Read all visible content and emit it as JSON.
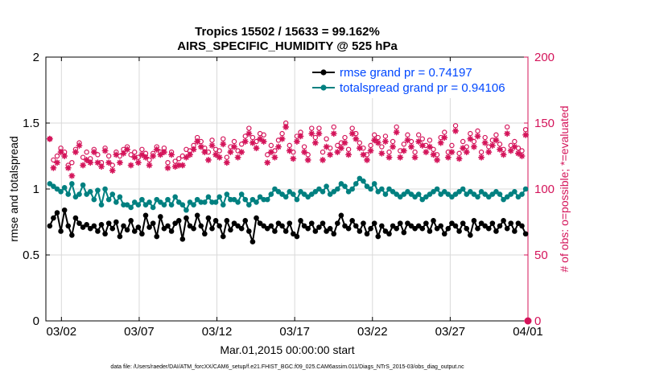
{
  "chart_data": {
    "type": "line",
    "title": "Tropics 15502 / 15633 = 99.162%",
    "subtitle": "AIRS_SPECIFIC_HUMIDITY @ 525 hPa",
    "xlabel": "Mar.01,2015 00:00:00 start",
    "ylabel_left": "rmse and totalspread",
    "ylabel_right": "# of obs: o=possible; *=evaluated",
    "x_range_days": [
      0,
      31
    ],
    "ylim_left": [
      0,
      2
    ],
    "ylim_right": [
      0,
      200
    ],
    "x_ticks": [
      {
        "day": 1,
        "label": "03/02"
      },
      {
        "day": 6,
        "label": "03/07"
      },
      {
        "day": 11,
        "label": "03/12"
      },
      {
        "day": 16,
        "label": "03/17"
      },
      {
        "day": 21,
        "label": "03/22"
      },
      {
        "day": 26,
        "label": "03/27"
      },
      {
        "day": 31,
        "label": "04/01"
      }
    ],
    "y_ticks_left": [
      {
        "value": 0,
        "label": "0"
      },
      {
        "value": 0.5,
        "label": "0.5"
      },
      {
        "value": 1,
        "label": "1"
      },
      {
        "value": 1.5,
        "label": "1.5"
      },
      {
        "value": 2,
        "label": "2"
      }
    ],
    "y_ticks_right": [
      {
        "value": 0,
        "label": "0"
      },
      {
        "value": 50,
        "label": "50"
      },
      {
        "value": 100,
        "label": "100"
      },
      {
        "value": 150,
        "label": "150"
      },
      {
        "value": 200,
        "label": "200"
      }
    ],
    "grid": true,
    "legend_position": "top-right",
    "series": [
      {
        "name": "rmse",
        "legend": "rmse grand pr = 0.74197",
        "color": "#000000",
        "axis": "left",
        "values": [
          0.72,
          0.78,
          0.82,
          0.68,
          0.84,
          0.72,
          0.65,
          0.78,
          0.74,
          0.71,
          0.73,
          0.7,
          0.72,
          0.68,
          0.73,
          0.66,
          0.74,
          0.7,
          0.75,
          0.64,
          0.72,
          0.69,
          0.76,
          0.68,
          0.71,
          0.66,
          0.8,
          0.71,
          0.74,
          0.64,
          0.79,
          0.7,
          0.72,
          0.68,
          0.74,
          0.76,
          0.62,
          0.78,
          0.72,
          0.7,
          0.8,
          0.72,
          0.66,
          0.78,
          0.7,
          0.76,
          0.72,
          0.64,
          0.76,
          0.69,
          0.74,
          0.72,
          0.7,
          0.76,
          0.68,
          0.6,
          0.78,
          0.74,
          0.72,
          0.7,
          0.72,
          0.68,
          0.74,
          0.72,
          0.68,
          0.74,
          0.66,
          0.64,
          0.76,
          0.72,
          0.7,
          0.74,
          0.68,
          0.71,
          0.74,
          0.68,
          0.7,
          0.66,
          0.74,
          0.8,
          0.72,
          0.7,
          0.76,
          0.72,
          0.68,
          0.74,
          0.66,
          0.7,
          0.74,
          0.64,
          0.72,
          0.68,
          0.66,
          0.72,
          0.7,
          0.74,
          0.67,
          0.74,
          0.72,
          0.7,
          0.72,
          0.7,
          0.74,
          0.68,
          0.76,
          0.7,
          0.72,
          0.66,
          0.7,
          0.74,
          0.72,
          0.68,
          0.74,
          0.7,
          0.65,
          0.76,
          0.7,
          0.74,
          0.72,
          0.7,
          0.74,
          0.68,
          0.72,
          0.76,
          0.7,
          0.74,
          0.68,
          0.74,
          0.72,
          0.66
        ]
      },
      {
        "name": "totalspread",
        "legend": "totalspread grand pr = 0.94106",
        "color": "#008080",
        "axis": "right_companion",
        "values": [
          1.04,
          1.02,
          1.0,
          0.98,
          1.01,
          0.96,
          1.04,
          0.94,
          0.96,
          1.03,
          0.96,
          0.98,
          0.92,
          0.99,
          0.88,
          1.0,
          0.92,
          0.96,
          0.9,
          0.94,
          0.88,
          0.88,
          0.86,
          0.9,
          0.88,
          0.92,
          0.88,
          0.9,
          0.86,
          0.92,
          0.9,
          0.88,
          0.92,
          0.88,
          0.94,
          0.9,
          0.88,
          0.84,
          0.9,
          0.88,
          0.92,
          0.9,
          0.9,
          0.94,
          0.9,
          0.9,
          0.94,
          0.88,
          0.96,
          0.92,
          0.92,
          0.9,
          0.96,
          0.92,
          0.88,
          0.92,
          0.9,
          0.94,
          0.92,
          0.92,
          0.96,
          1.0,
          0.98,
          0.96,
          0.94,
          0.98,
          0.96,
          0.92,
          0.98,
          0.96,
          0.94,
          0.96,
          0.98,
          1.0,
          0.98,
          1.02,
          0.96,
          0.98,
          1.0,
          1.04,
          1.02,
          0.98,
          1.0,
          1.04,
          1.08,
          1.06,
          1.02,
          1.0,
          1.04,
          0.98,
          1.0,
          0.96,
          1.0,
          0.98,
          0.96,
          0.94,
          0.96,
          0.98,
          0.96,
          0.94,
          0.96,
          0.92,
          0.94,
          0.96,
          0.98,
          1.0,
          0.96,
          0.98,
          0.96,
          0.94,
          0.96,
          0.98,
          1.0,
          0.96,
          0.98,
          0.96,
          0.94,
          0.98,
          0.96,
          0.94,
          0.96,
          0.98,
          0.96,
          0.92,
          0.94,
          0.96,
          0.98,
          0.94,
          0.96,
          1.0
        ]
      }
    ],
    "obs_possible": [
      138,
      122,
      125,
      131,
      128,
      118,
      120,
      130,
      135,
      124,
      128,
      123,
      130,
      126,
      120,
      131,
      125,
      118,
      128,
      125,
      130,
      132,
      126,
      128,
      124,
      130,
      127,
      122,
      127,
      132,
      128,
      131,
      120,
      128,
      121,
      123,
      125,
      130,
      129,
      133,
      139,
      136,
      131,
      128,
      137,
      130,
      129,
      138,
      124,
      132,
      136,
      129,
      134,
      140,
      146,
      139,
      136,
      142,
      141,
      126,
      133,
      129,
      137,
      142,
      150,
      133,
      128,
      140,
      143,
      132,
      126,
      146,
      139,
      146,
      128,
      138,
      131,
      147,
      133,
      135,
      139,
      130,
      146,
      142,
      135,
      131,
      126,
      133,
      141,
      139,
      132,
      140,
      128,
      136,
      147,
      129,
      134,
      141,
      136,
      128,
      141,
      138,
      133,
      137,
      130,
      126,
      139,
      143,
      128,
      133,
      148,
      127,
      136,
      132,
      142,
      136,
      144,
      128,
      139,
      132,
      137,
      141,
      134,
      130,
      147,
      133,
      136,
      131,
      129,
      145
    ],
    "obs_evaluated": [
      138,
      116,
      120,
      128,
      125,
      116,
      110,
      128,
      133,
      118,
      122,
      120,
      128,
      120,
      117,
      129,
      120,
      114,
      126,
      120,
      127,
      130,
      118,
      124,
      120,
      126,
      124,
      118,
      125,
      130,
      126,
      128,
      116,
      126,
      117,
      118,
      118,
      124,
      126,
      130,
      136,
      132,
      128,
      122,
      133,
      126,
      124,
      134,
      120,
      128,
      132,
      124,
      128,
      136,
      142,
      135,
      131,
      138,
      136,
      120,
      128,
      124,
      132,
      138,
      147,
      129,
      123,
      136,
      140,
      128,
      122,
      142,
      135,
      142,
      122,
      132,
      126,
      142,
      128,
      131,
      135,
      126,
      142,
      138,
      131,
      126,
      122,
      129,
      137,
      135,
      127,
      136,
      124,
      132,
      143,
      124,
      129,
      137,
      132,
      124,
      136,
      133,
      128,
      132,
      126,
      122,
      135,
      139,
      124,
      128,
      144,
      123,
      131,
      128,
      138,
      132,
      140,
      124,
      135,
      128,
      133,
      137,
      130,
      126,
      142,
      129,
      132,
      127,
      125,
      141
    ],
    "obs_endpoint": {
      "day": 31,
      "value": 0
    }
  },
  "footer": {
    "text": "data file: /Users/raeder/DAI/ATM_forcXX/CAM6_setup/f.e21.FHIST_BGC.f09_025.CAM6assim.011/Diags_NTrS_2015-03/obs_diag_output.nc"
  },
  "colors": {
    "rmse": "#000000",
    "spread": "#008080",
    "obs": "#d4145a",
    "legend_text": "#0047ff",
    "grid": "#d9d9d9"
  }
}
